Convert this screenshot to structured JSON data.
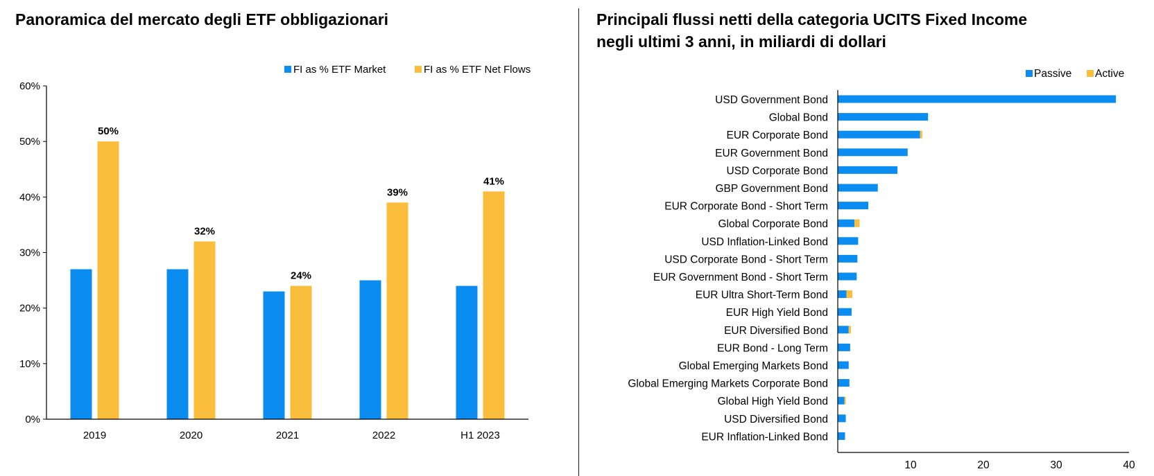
{
  "left_panel": {
    "title": "Panoramica del mercato degli ETF obbligazionari"
  },
  "right_panel": {
    "title_line1": "Principali flussi netti della categoria UCITS Fixed Income",
    "title_line2": "negli ultimi 3 anni, in miliardi di dollari"
  },
  "colors": {
    "blue": "#0A8CF0",
    "gold": "#FBBD3C"
  },
  "chart_data": [
    {
      "type": "bar",
      "title": "Panoramica del mercato degli ETF obbligazionari",
      "categories": [
        "2019",
        "2020",
        "2021",
        "2022",
        "H1 2023"
      ],
      "series": [
        {
          "name": "FI as % ETF Market",
          "values": [
            27,
            27,
            23,
            25,
            24
          ],
          "color": "#0A8CF0"
        },
        {
          "name": "FI as % ETF Net Flows",
          "values": [
            50,
            32,
            24,
            39,
            41
          ],
          "color": "#FBBD3C"
        }
      ],
      "data_labels": [
        "50%",
        "32%",
        "24%",
        "39%",
        "41%"
      ],
      "ylim": [
        0,
        60
      ],
      "yticks": [
        "0%",
        "10%",
        "20%",
        "30%",
        "40%",
        "50%",
        "60%"
      ],
      "legend_position": "top-right",
      "grid": false
    },
    {
      "type": "bar",
      "orientation": "horizontal",
      "stacked": true,
      "title": "Principali flussi netti della categoria UCITS Fixed Income negli ultimi 3 anni, in miliardi di dollari",
      "categories": [
        "USD Government Bond",
        "Global Bond",
        "EUR Corporate Bond",
        "EUR Government Bond",
        "USD Corporate Bond",
        "GBP Government Bond",
        "EUR Corporate Bond - Short Term",
        "Global Corporate Bond",
        "USD Inflation-Linked Bond",
        "USD Corporate Bond - Short Term",
        "EUR Government Bond - Short Term",
        "EUR Ultra Short-Term Bond",
        "EUR High Yield Bond",
        "EUR Diversified Bond",
        "EUR Bond - Long Term",
        "Global Emerging Markets Bond",
        "Global Emerging Markets Corporate Bond",
        "Global High Yield Bond",
        "USD Diversified Bond",
        "EUR Inflation-Linked Bond"
      ],
      "series": [
        {
          "name": "Passive",
          "values": [
            38.2,
            12.4,
            11.3,
            9.6,
            8.2,
            5.5,
            4.2,
            2.3,
            2.8,
            2.7,
            2.6,
            1.2,
            1.9,
            1.5,
            1.7,
            1.5,
            1.6,
            0.9,
            1.1,
            1.0
          ],
          "color": "#0A8CF0"
        },
        {
          "name": "Active",
          "values": [
            0,
            0,
            0.3,
            0,
            0,
            0,
            0,
            0.7,
            0,
            0,
            0,
            0.8,
            0,
            0.3,
            0,
            0,
            0,
            0.2,
            0,
            0
          ],
          "color": "#FBBD3C"
        }
      ],
      "xlim": [
        0,
        40
      ],
      "xticks": [
        "10",
        "20",
        "30",
        "40"
      ],
      "legend_position": "top-right",
      "grid": false
    }
  ]
}
